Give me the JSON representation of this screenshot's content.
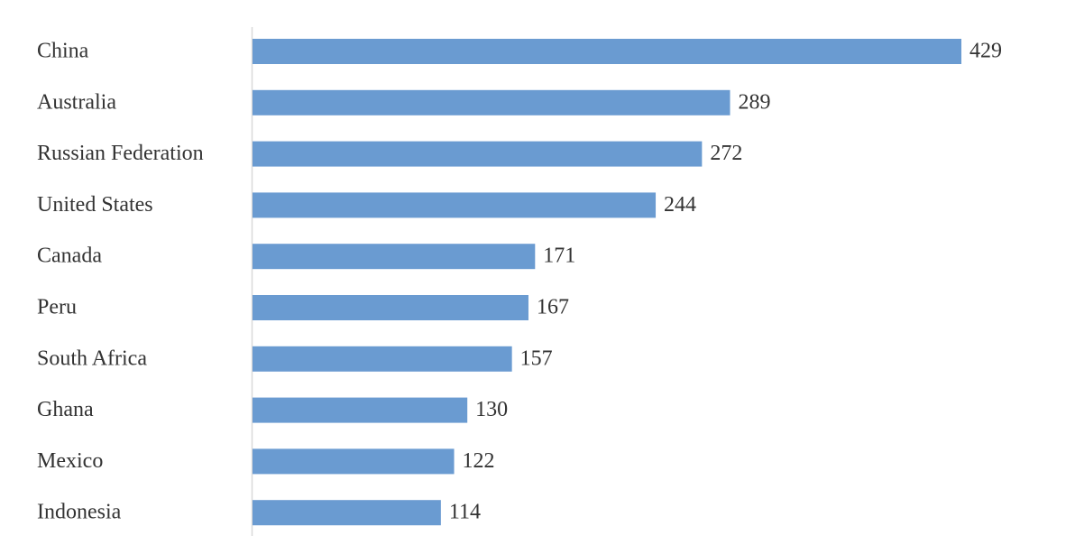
{
  "chart_data": {
    "type": "bar",
    "orientation": "horizontal",
    "categories": [
      "China",
      "Australia",
      "Russian Federation",
      "United States",
      "Canada",
      "Peru",
      "South Africa",
      "Ghana",
      "Mexico",
      "Indonesia"
    ],
    "values": [
      429,
      289,
      272,
      244,
      171,
      167,
      157,
      130,
      122,
      114
    ],
    "color": "#6a9bd1"
  }
}
